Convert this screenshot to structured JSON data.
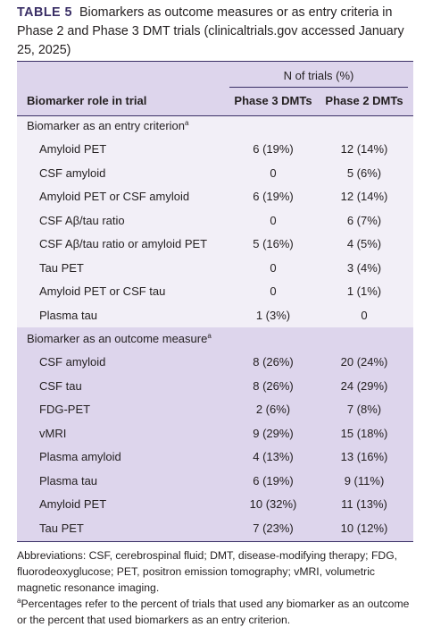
{
  "caption": {
    "label": "TABLE 5",
    "text": "Biomarkers as outcome measures or as entry criteria in Phase 2 and Phase 3 DMT trials (clinicaltrials.gov accessed January 25, 2025)"
  },
  "header": {
    "group": "N of trials (%)",
    "col0": "Biomarker role in trial",
    "col1": "Phase 3 DMTs",
    "col2": "Phase 2 DMTs"
  },
  "sections": [
    {
      "title": "Biomarker as an entry criterion",
      "sup": "a",
      "rows": [
        {
          "label": "Amyloid PET",
          "p3": "6 (19%)",
          "p2": "12 (14%)"
        },
        {
          "label": "CSF amyloid",
          "p3": "0",
          "p2": "5 (6%)"
        },
        {
          "label": "Amyloid PET or CSF amyloid",
          "p3": "6 (19%)",
          "p2": "12 (14%)"
        },
        {
          "label": "CSF Aβ/tau ratio",
          "p3": "0",
          "p2": "6 (7%)"
        },
        {
          "label": "CSF Aβ/tau ratio or amyloid PET",
          "p3": "5 (16%)",
          "p2": "4 (5%)"
        },
        {
          "label": "Tau PET",
          "p3": "0",
          "p2": "3 (4%)"
        },
        {
          "label": "Amyloid PET or CSF tau",
          "p3": "0",
          "p2": "1 (1%)"
        },
        {
          "label": "Plasma tau",
          "p3": "1 (3%)",
          "p2": "0"
        }
      ]
    },
    {
      "title": "Biomarker as an outcome measure",
      "sup": "a",
      "rows": [
        {
          "label": "CSF amyloid",
          "p3": "8 (26%)",
          "p2": "20 (24%)"
        },
        {
          "label": "CSF tau",
          "p3": "8 (26%)",
          "p2": "24 (29%)"
        },
        {
          "label": "FDG-PET",
          "p3": "2 (6%)",
          "p2": "7 (8%)"
        },
        {
          "label": "vMRI",
          "p3": "9 (29%)",
          "p2": "15 (18%)"
        },
        {
          "label": "Plasma amyloid",
          "p3": "4 (13%)",
          "p2": "13 (16%)"
        },
        {
          "label": "Plasma tau",
          "p3": "6 (19%)",
          "p2": "9 (11%)"
        },
        {
          "label": "Amyloid PET",
          "p3": "10 (32%)",
          "p2": "11 (13%)"
        },
        {
          "label": "Tau PET",
          "p3": "7 (23%)",
          "p2": "10 (12%)"
        }
      ]
    }
  ],
  "footnotes": {
    "abbreviations": "Abbreviations: CSF, cerebrospinal fluid; DMT, disease-modifying therapy; FDG, fluorodeoxyglucose; PET, positron emission tomography; vMRI, volumetric magnetic resonance imaging.",
    "note_sup": "a",
    "note": "Percentages refer to the percent of trials that used any biomarker as an outcome or the percent that used biomarkers as an entry criterion."
  }
}
